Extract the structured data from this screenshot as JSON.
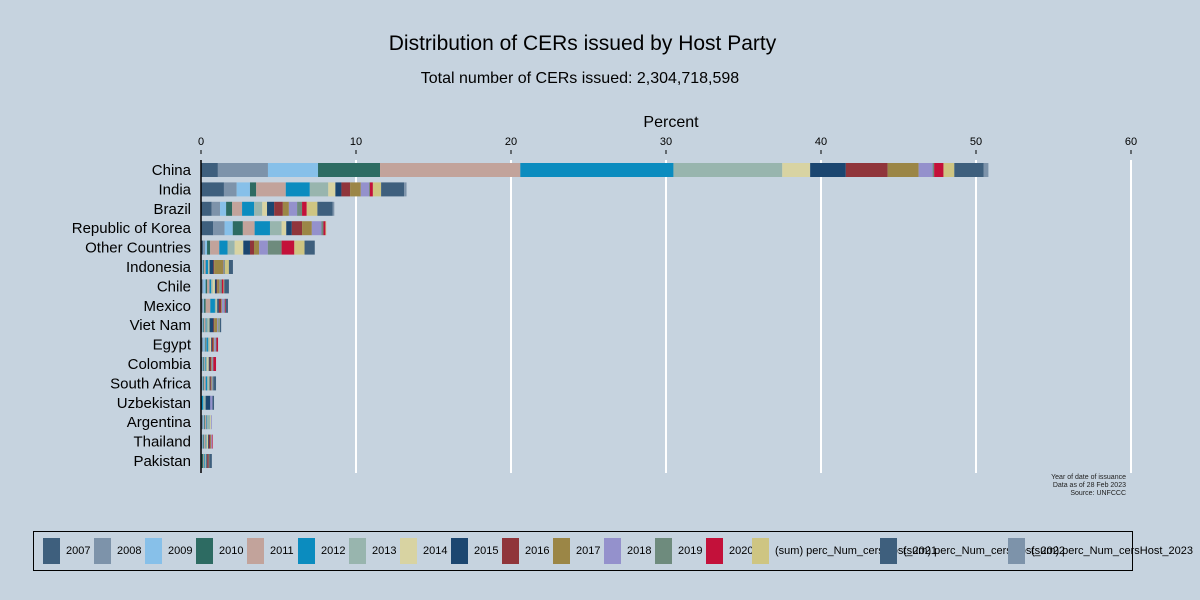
{
  "chart_data": {
    "type": "bar",
    "orientation": "horizontal",
    "stacked": true,
    "title": "Distribution of CERs issued by Host Party",
    "subtitle": "Total number of CERs issued: 2,304,718,598",
    "xlabel": "Percent",
    "ylabel": "",
    "xlim": [
      0,
      60
    ],
    "xticks": [
      0,
      10,
      20,
      30,
      40,
      50,
      60
    ],
    "grid": true,
    "legend_position": "bottom",
    "note": [
      "Year of date of issuance",
      "Data as of 28 Feb 2023",
      "Source: UNFCCC"
    ],
    "categories": [
      "China",
      "India",
      "Brazil",
      "Republic of Korea",
      "Other Countries",
      "Indonesia",
      "Chile",
      "Mexico",
      "Viet Nam",
      "Egypt",
      "Colombia",
      "South Africa",
      "Uzbekistan",
      "Argentina",
      "Thailand",
      "Pakistan"
    ],
    "series": [
      {
        "name": "2007",
        "color": "#3e5f7d",
        "values": [
          1.09,
          1.48,
          0.69,
          0.79,
          0.14,
          0.05,
          0.05,
          0.05,
          0.05,
          0.05,
          0.05,
          0.05,
          0,
          0.05,
          0.05,
          0.05
        ]
      },
      {
        "name": "2008",
        "color": "#7d93aa",
        "values": [
          3.23,
          0.82,
          0.54,
          0.73,
          0.12,
          0.05,
          0.1,
          0.1,
          0.05,
          0.1,
          0.05,
          0.05,
          0,
          0.1,
          0.05,
          0
        ]
      },
      {
        "name": "2009",
        "color": "#87c0e9",
        "values": [
          3.23,
          0.86,
          0.39,
          0.53,
          0.13,
          0.05,
          0.15,
          0.05,
          0.05,
          0.1,
          0.05,
          0.05,
          0,
          0.05,
          0.05,
          0
        ]
      },
      {
        "name": "2010",
        "color": "#2d6b62",
        "values": [
          4.0,
          0.4,
          0.39,
          0.65,
          0.2,
          0.05,
          0.1,
          0.1,
          0.05,
          0.05,
          0.05,
          0.05,
          0,
          0.05,
          0.05,
          0.1
        ]
      },
      {
        "name": "2011",
        "color": "#c2a39b",
        "values": [
          9.05,
          1.91,
          0.64,
          0.76,
          0.59,
          0.1,
          0.15,
          0.3,
          0.1,
          0.05,
          0.05,
          0.1,
          0,
          0.1,
          0.1,
          0.05
        ]
      },
      {
        "name": "2012",
        "color": "#0b8cbf",
        "values": [
          9.88,
          1.55,
          0.78,
          0.99,
          0.53,
          0.15,
          0.1,
          0.3,
          0.05,
          0.1,
          0.05,
          0.1,
          0.15,
          0.05,
          0.05,
          0.05
        ]
      },
      {
        "name": "2013",
        "color": "#98b5ae",
        "values": [
          7.02,
          1.19,
          0.52,
          0.75,
          0.46,
          0.05,
          0.1,
          0.1,
          0.15,
          0.1,
          0.1,
          0.1,
          0.15,
          0.2,
          0,
          0.1
        ]
      },
      {
        "name": "2014",
        "color": "#d8d3a2",
        "values": [
          1.8,
          0.46,
          0.31,
          0.3,
          0.56,
          0.05,
          0.15,
          0.05,
          0.05,
          0.1,
          0.1,
          0.05,
          0,
          0.05,
          0.1,
          0
        ]
      },
      {
        "name": "2015",
        "color": "#1b4670",
        "values": [
          2.3,
          0.39,
          0.46,
          0.36,
          0.43,
          0.25,
          0.1,
          0.1,
          0.25,
          0.05,
          0.05,
          0.05,
          0.3,
          0,
          0.05,
          0.05
        ]
      },
      {
        "name": "2016",
        "color": "#90353b",
        "values": [
          2.7,
          0.56,
          0.56,
          0.66,
          0.26,
          0.05,
          0.05,
          0.15,
          0.05,
          0.1,
          0.1,
          0.05,
          0,
          0,
          0.1,
          0.1
        ]
      },
      {
        "name": "2017",
        "color": "#9b8646",
        "values": [
          2.0,
          0.69,
          0.39,
          0.63,
          0.33,
          0.6,
          0.15,
          0.05,
          0.2,
          0.05,
          0.05,
          0.05,
          0,
          0,
          0.05,
          0
        ]
      },
      {
        "name": "2018",
        "color": "#9491cc",
        "values": [
          0.9,
          0.53,
          0.53,
          0.62,
          0.56,
          0.05,
          0.05,
          0.15,
          0.05,
          0.1,
          0.05,
          0.05,
          0.14,
          0.05,
          0.05,
          0
        ]
      },
      {
        "name": "2019",
        "color": "#6e8b7d",
        "values": [
          0.1,
          0.06,
          0.32,
          0.13,
          0.89,
          0.05,
          0.1,
          0.05,
          0.05,
          0.05,
          0.05,
          0.05,
          0,
          0,
          0,
          0.05
        ]
      },
      {
        "name": "2020",
        "color": "#c3113a",
        "values": [
          0.6,
          0.19,
          0.3,
          0.13,
          0.82,
          0,
          0.1,
          0.05,
          0,
          0.1,
          0.17,
          0,
          0,
          0,
          0.05,
          0
        ]
      },
      {
        "name": "(sum) perc_Num_cersHost_2021",
        "color": "#cec582",
        "values": [
          0.7,
          0.53,
          0.69,
          0.05,
          0.66,
          0.25,
          0.05,
          0,
          0.05,
          0,
          0,
          0,
          0,
          0,
          0,
          0
        ]
      },
      {
        "name": "(sum) perc_Num_cersHost_2022",
        "color": "#3e5f7d",
        "values": [
          1.9,
          1.48,
          0.99,
          0,
          0.66,
          0.26,
          0.3,
          0.14,
          0.1,
          0,
          0,
          0.17,
          0.1,
          0,
          0,
          0.15
        ]
      },
      {
        "name": "(sum) perc_Num_cersHost_2023",
        "color": "#7d93aa",
        "values": [
          0.3,
          0.16,
          0.1,
          0,
          0,
          0,
          0,
          0,
          0,
          0,
          0,
          0,
          0,
          0,
          0,
          0
        ]
      }
    ]
  }
}
